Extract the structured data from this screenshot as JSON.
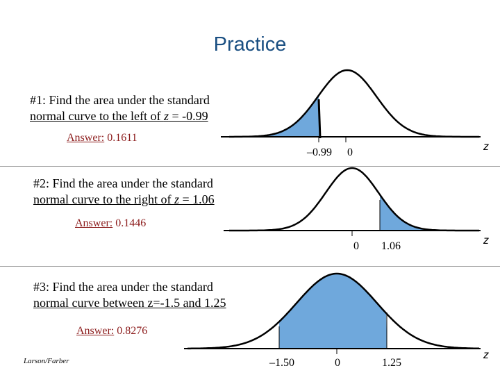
{
  "slide": {
    "title": "Practice",
    "footer": "Larson/Farber"
  },
  "problems": [
    {
      "prefix": "#1: Find the area under the standard",
      "line2_before": "normal curve to the ",
      "direction": "left",
      "line2_after": " of ",
      "var": "z",
      "condition": " = -0.99",
      "answer_label": "Answer:",
      "answer_value": "0.1611",
      "ticks": [
        "–0.99",
        "0"
      ],
      "axis_var": "z"
    },
    {
      "prefix": "#2: Find the area under the standard",
      "line2_before": "normal curve to the ",
      "direction": "right",
      "line2_after": " of ",
      "var": "z",
      "condition": " = 1.06",
      "answer_label": "Answer:",
      "answer_value": "0.1446",
      "ticks": [
        "0",
        "1.06"
      ],
      "axis_var": "z"
    },
    {
      "prefix": "#3: Find the area under the standard",
      "line2_before": "normal curve ",
      "direction": "between z=-1.5 and 1.25",
      "line2_after": "",
      "var": "",
      "condition": "",
      "answer_label": "Answer:",
      "answer_value": "0.8276",
      "ticks": [
        "–1.50",
        "0",
        "1.25"
      ],
      "axis_var": "z"
    }
  ],
  "colors": {
    "title": "#1a4f82",
    "shade": "#6fa8dc",
    "answer": "#8b1a1a"
  }
}
